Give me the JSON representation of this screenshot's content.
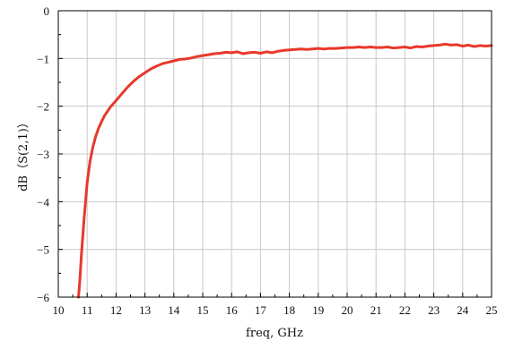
{
  "chart_data": {
    "type": "line",
    "title": "",
    "xlabel": "freq, GHz",
    "ylabel": "dB（S(2,1)）",
    "xlim": [
      10,
      25
    ],
    "ylim": [
      -6,
      0
    ],
    "grid": true,
    "x_ticks": [
      "10",
      "11",
      "12",
      "13",
      "14",
      "15",
      "16",
      "17",
      "18",
      "19",
      "20",
      "21",
      "22",
      "23",
      "24",
      "25"
    ],
    "y_ticks": [
      "0",
      "−1",
      "−2",
      "−3",
      "−4",
      "−5",
      "−6"
    ],
    "series": [
      {
        "color": "#e8382b",
        "x": [
          10.7,
          10.75,
          10.8,
          10.9,
          11.0,
          11.1,
          11.2,
          11.3,
          11.4,
          11.5,
          11.6,
          11.8,
          12.0,
          12.2,
          12.4,
          12.6,
          12.8,
          13.0,
          13.2,
          13.4,
          13.6,
          13.8,
          14.0,
          14.2,
          14.4,
          14.6,
          14.8,
          15.0,
          15.2,
          15.4,
          15.6,
          15.8,
          16.0,
          16.2,
          16.4,
          16.6,
          16.8,
          17.0,
          17.2,
          17.4,
          17.6,
          17.8,
          18.0,
          18.2,
          18.4,
          18.6,
          18.8,
          19.0,
          19.2,
          19.4,
          19.6,
          19.8,
          20.0,
          20.2,
          20.4,
          20.6,
          20.8,
          21.0,
          21.2,
          21.4,
          21.6,
          21.8,
          22.0,
          22.2,
          22.4,
          22.6,
          22.8,
          23.0,
          23.2,
          23.4,
          23.6,
          23.8,
          24.0,
          24.2,
          24.4,
          24.6,
          24.8,
          25.0
        ],
        "y": [
          -6.0,
          -5.6,
          -5.1,
          -4.3,
          -3.6,
          -3.15,
          -2.85,
          -2.62,
          -2.45,
          -2.32,
          -2.2,
          -2.02,
          -1.88,
          -1.74,
          -1.6,
          -1.48,
          -1.38,
          -1.3,
          -1.22,
          -1.16,
          -1.11,
          -1.08,
          -1.05,
          -1.02,
          -1.01,
          -0.99,
          -0.96,
          -0.94,
          -0.92,
          -0.9,
          -0.89,
          -0.87,
          -0.88,
          -0.86,
          -0.9,
          -0.88,
          -0.87,
          -0.89,
          -0.86,
          -0.88,
          -0.85,
          -0.83,
          -0.82,
          -0.81,
          -0.8,
          -0.81,
          -0.8,
          -0.79,
          -0.8,
          -0.79,
          -0.79,
          -0.78,
          -0.77,
          -0.77,
          -0.76,
          -0.77,
          -0.76,
          -0.77,
          -0.77,
          -0.76,
          -0.78,
          -0.77,
          -0.76,
          -0.78,
          -0.75,
          -0.76,
          -0.74,
          -0.73,
          -0.72,
          -0.7,
          -0.72,
          -0.71,
          -0.74,
          -0.72,
          -0.75,
          -0.73,
          -0.74,
          -0.73
        ]
      }
    ]
  }
}
